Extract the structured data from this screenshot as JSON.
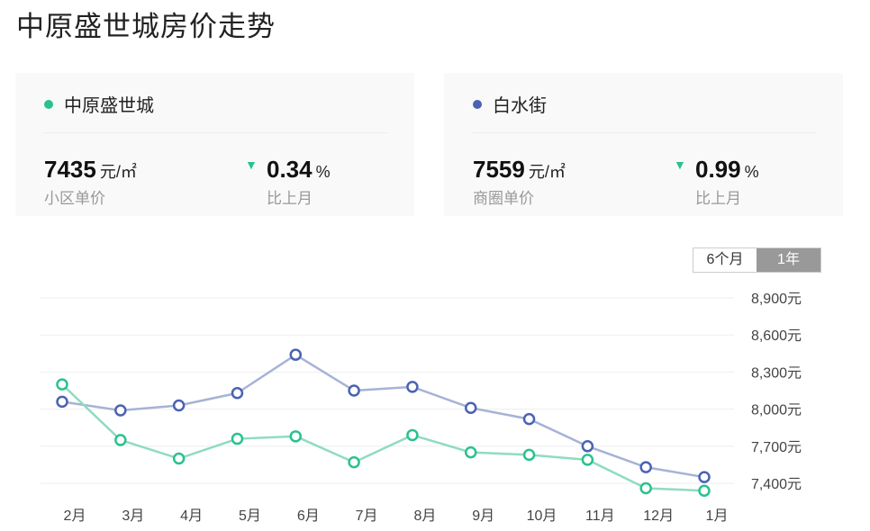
{
  "title": "中原盛世城房价走势",
  "cards": [
    {
      "name": "中原盛世城",
      "dot_color": "#2ac18f",
      "price": "7435",
      "price_unit": "元/㎡",
      "price_label": "小区单价",
      "change_icon": "triangle-down-icon",
      "change_value": "0.34",
      "change_unit": "%",
      "change_label": "比上月"
    },
    {
      "name": "白水街",
      "dot_color": "#4a62b3",
      "price": "7559",
      "price_unit": "元/㎡",
      "price_label": "商圈单价",
      "change_icon": "triangle-down-icon",
      "change_value": "0.99",
      "change_unit": "%",
      "change_label": "比上月"
    }
  ],
  "range_toggle": {
    "options": [
      "6个月",
      "1年"
    ],
    "selected": "1年"
  },
  "chart_data": {
    "type": "line",
    "categories": [
      "2月",
      "3月",
      "4月",
      "5月",
      "6月",
      "7月",
      "8月",
      "9月",
      "10月",
      "11月",
      "12月",
      "1月"
    ],
    "series": [
      {
        "name": "中原盛世城",
        "color": "#2ac18f",
        "values": [
          8200,
          7750,
          7600,
          7760,
          7780,
          7570,
          7790,
          7650,
          7630,
          7590,
          7360,
          7340
        ]
      },
      {
        "name": "白水街",
        "color": "#4a62b3",
        "values": [
          8060,
          7990,
          8030,
          8130,
          8440,
          8150,
          8180,
          8010,
          7920,
          7700,
          7530,
          7450
        ]
      }
    ],
    "yticks": [
      "8,900元",
      "8,600元",
      "8,300元",
      "8,000元",
      "7,700元",
      "7,400元"
    ],
    "ytick_values": [
      8900,
      8600,
      8300,
      8000,
      7700,
      7400
    ],
    "ylim": [
      7400,
      8900
    ],
    "grid": true,
    "y_axis_position": "right"
  }
}
